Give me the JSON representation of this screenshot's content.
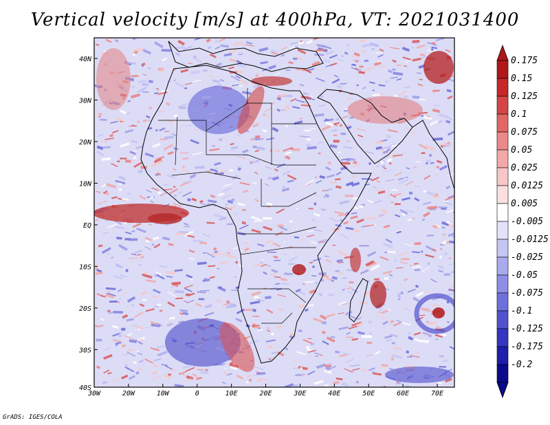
{
  "title": "Vertical velocity [m/s] at 400hPa, VT: 2021031400",
  "credit": "GrADS: IGES/COLA",
  "map": {
    "lon_labels": [
      "30W",
      "20W",
      "10W",
      "0",
      "10E",
      "20E",
      "30E",
      "40E",
      "50E",
      "60E",
      "70E"
    ],
    "lat_labels": [
      "40N",
      "30N",
      "20N",
      "10N",
      "EQ",
      "10S",
      "20S",
      "30S",
      "40S"
    ]
  },
  "colorbar": {
    "labels": [
      "0.175",
      "0.15",
      "0.125",
      "0.1",
      "0.075",
      "0.05",
      "0.025",
      "0.0125",
      "0.005",
      "-0.005",
      "-0.0125",
      "-0.025",
      "-0.05",
      "-0.075",
      "-0.1",
      "-0.125",
      "-0.175",
      "-0.2"
    ],
    "colors": [
      "#b01818",
      "#c62828",
      "#d64545",
      "#e26666",
      "#ec8888",
      "#f3a8a8",
      "#f8c6c6",
      "#fce0e0",
      "#ffffff",
      "#e2e2fb",
      "#c6c6f5",
      "#aaaaee",
      "#8e8ee6",
      "#7070dc",
      "#5252cf",
      "#3636c2",
      "#1e1eab",
      "#0a0a8a"
    ]
  }
}
